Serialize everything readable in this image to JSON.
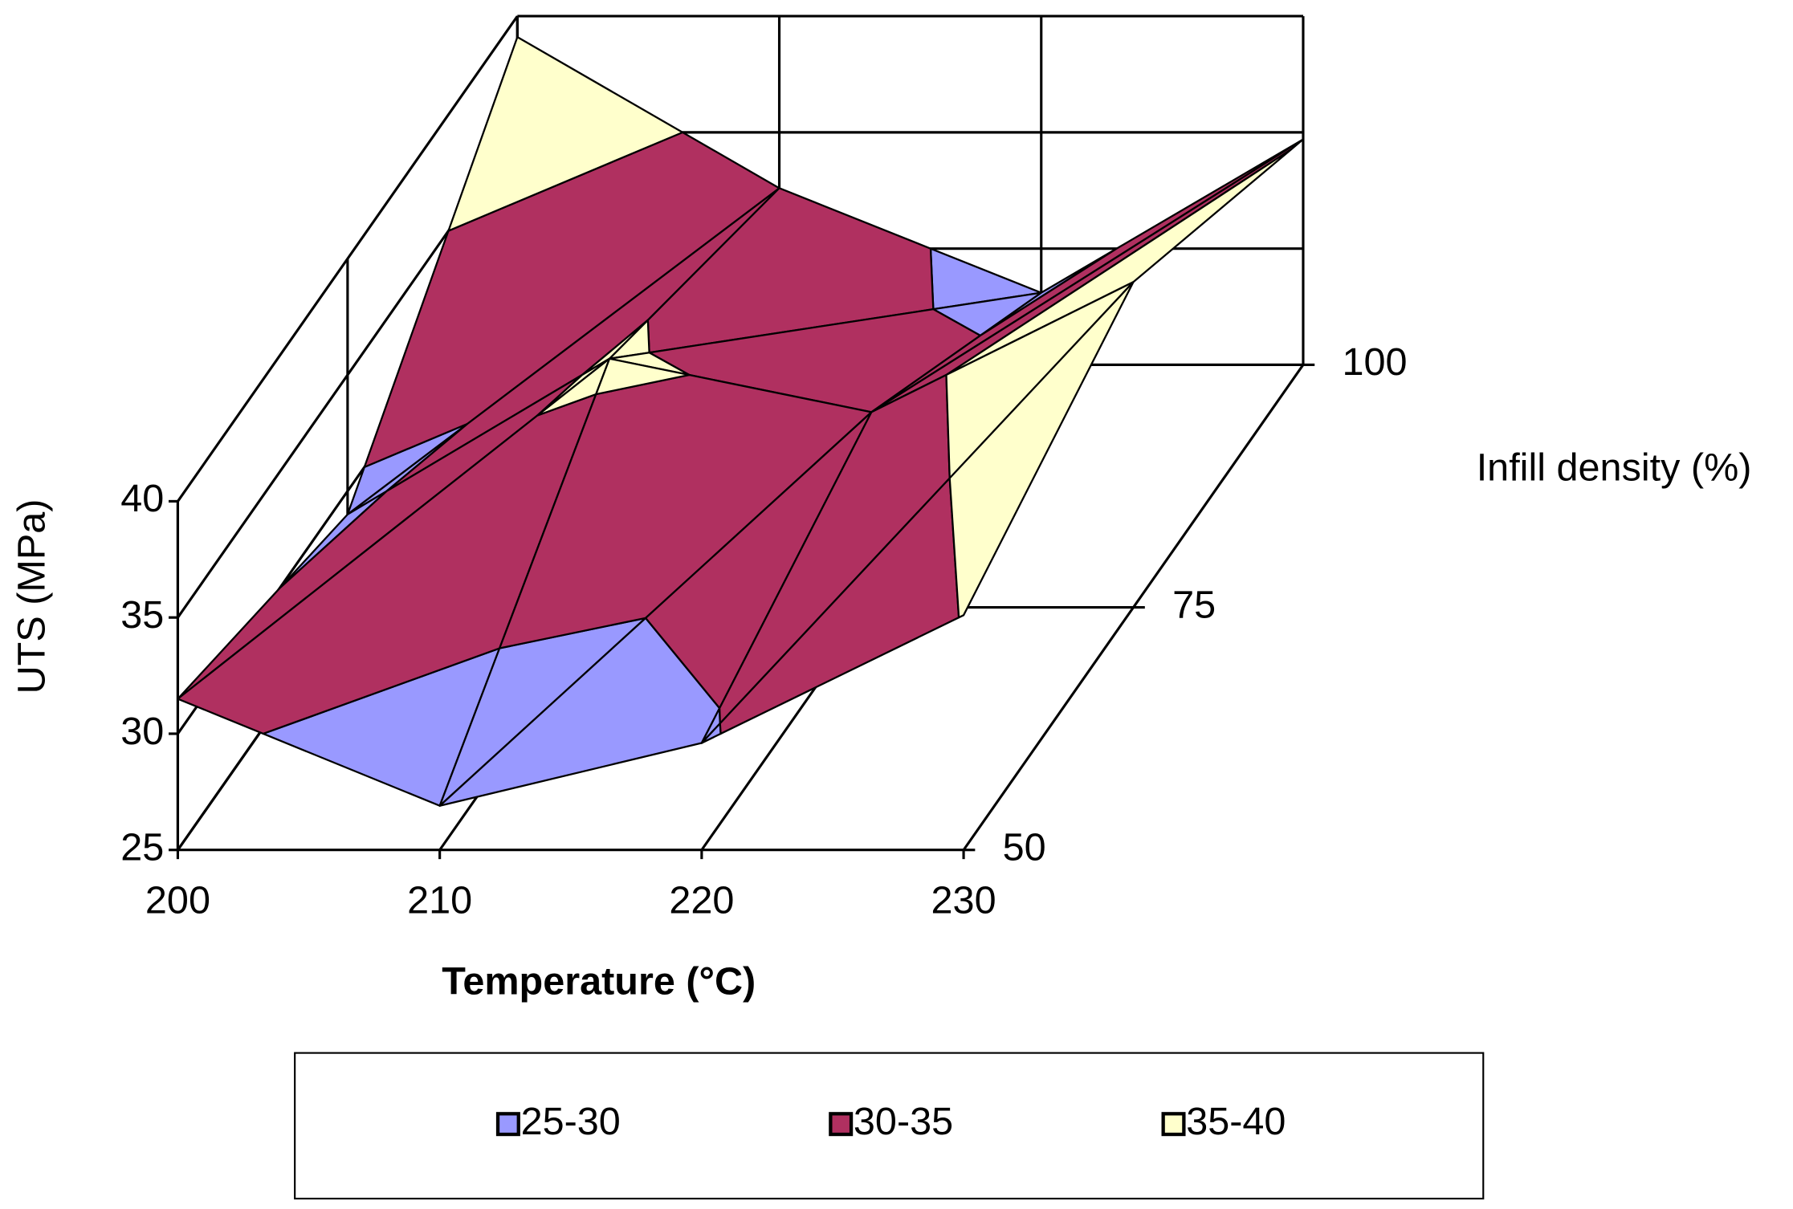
{
  "chart_data": {
    "type": "surface",
    "x_label": "Temperature (°C)",
    "y_label": "Infill density (%)",
    "z_label": "UTS (MPa)",
    "x": [
      200,
      210,
      220,
      230
    ],
    "y": [
      50,
      75,
      100
    ],
    "values": [
      [
        31.5,
        26.9,
        29.6,
        35.1
      ],
      [
        29,
        35.7,
        33.4,
        39
      ],
      [
        39.1,
        32.6,
        28.1,
        34.7
      ]
    ],
    "zlim": [
      25,
      40
    ],
    "zticks": [
      25,
      30,
      35,
      40
    ],
    "series": [
      {
        "name": "25-30",
        "color": "#9999ff",
        "range": [
          25,
          30
        ]
      },
      {
        "name": "30-35",
        "color": "#b03060",
        "range": [
          30,
          35
        ]
      },
      {
        "name": "35-40",
        "color": "#ffffcc",
        "range": [
          35,
          40
        ]
      }
    ]
  }
}
